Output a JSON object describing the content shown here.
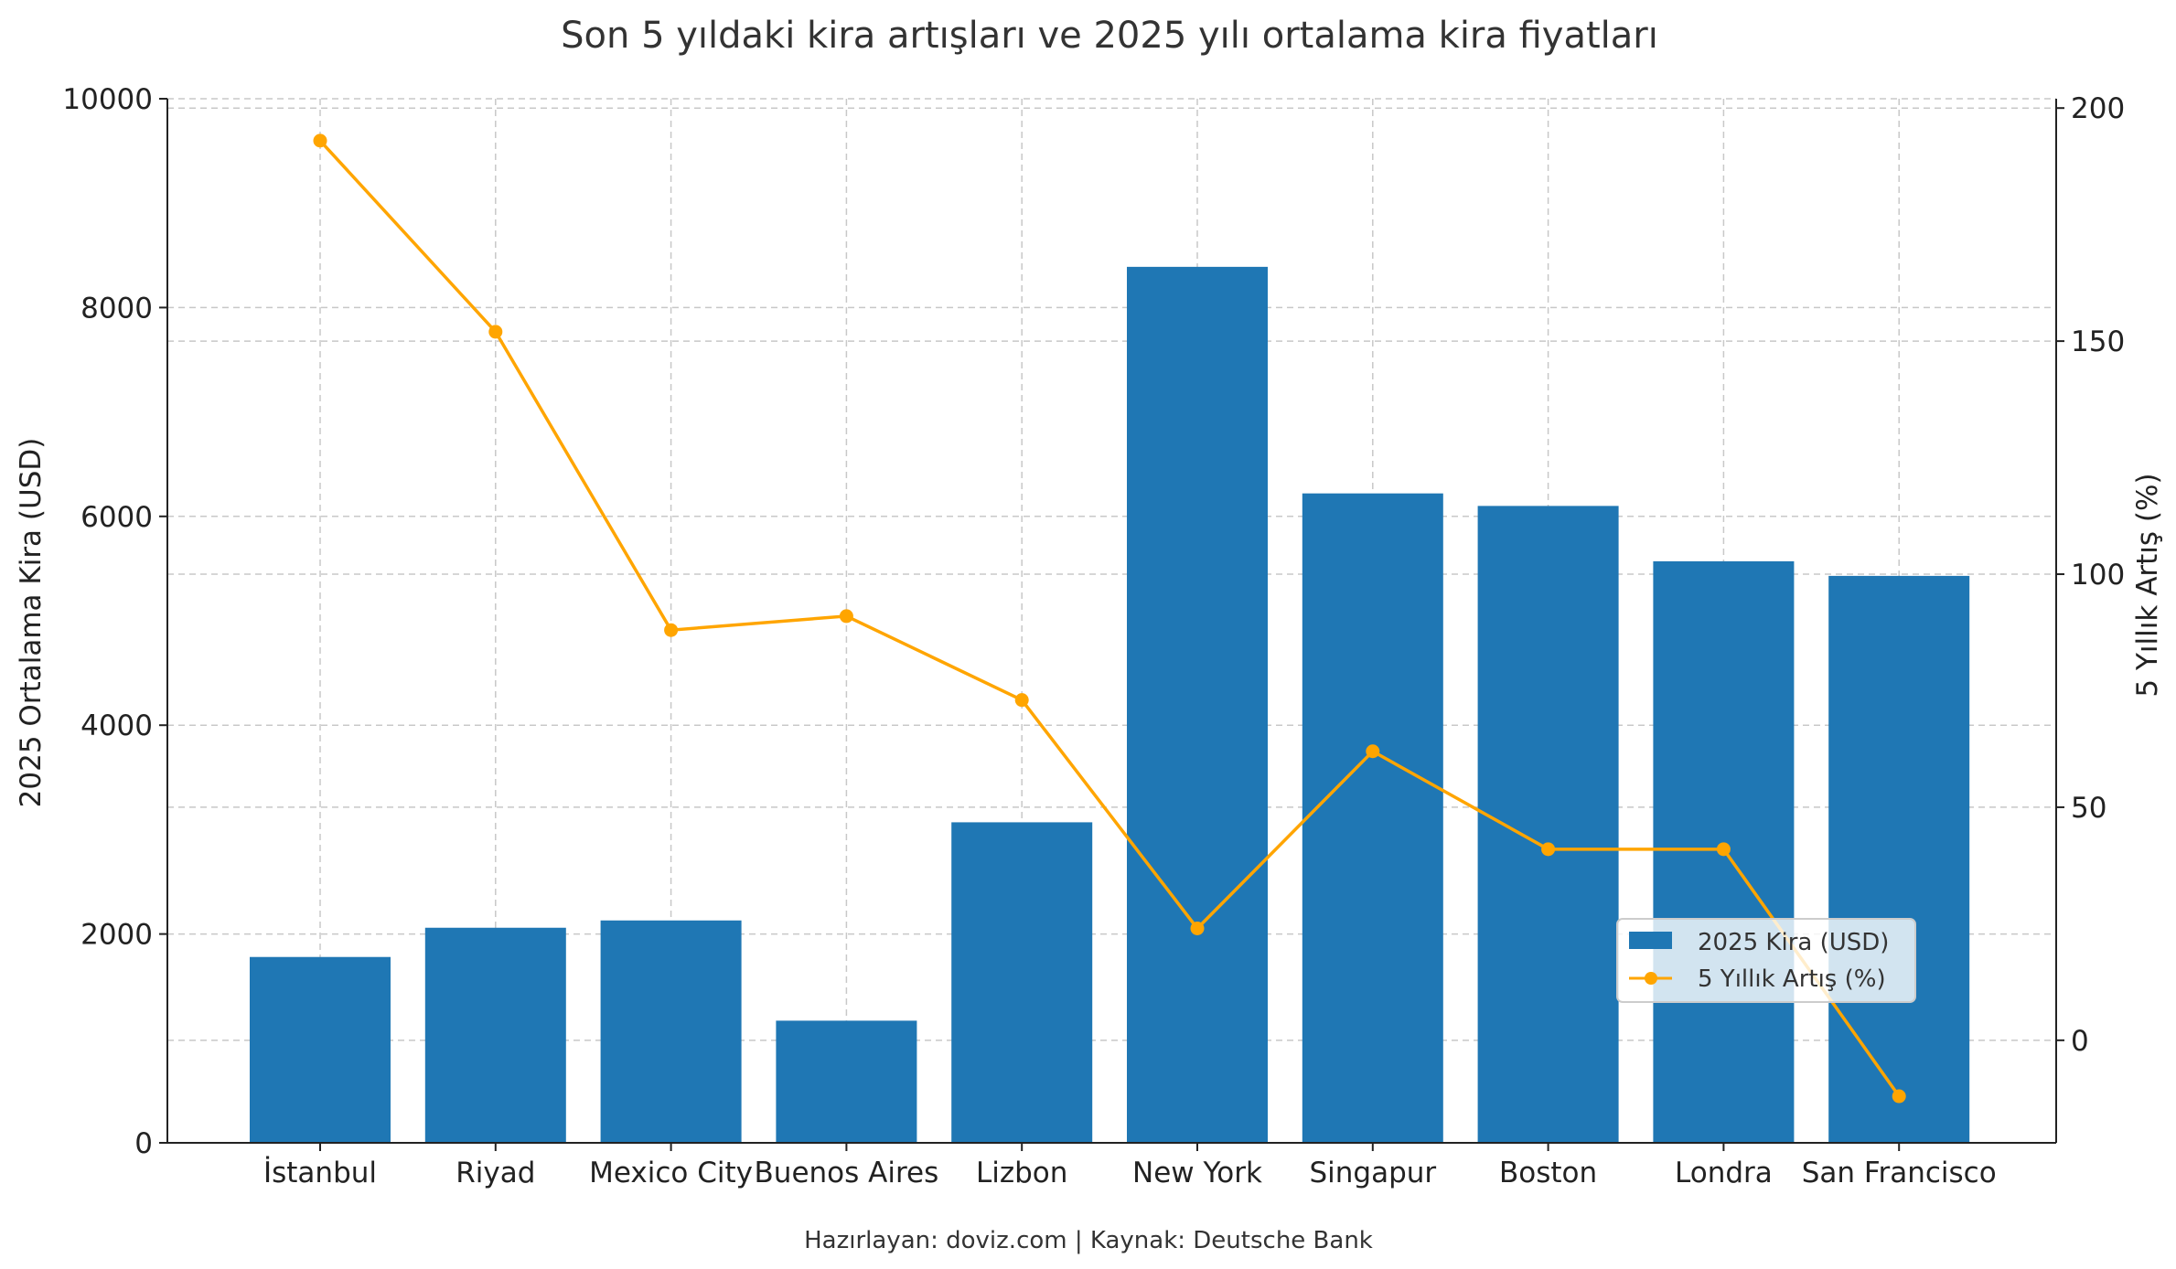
{
  "chart_data": {
    "type": "bar",
    "title": "Son 5 yıldaki kira artışları ve 2025 yılı ortalama kira fiyatları",
    "categories": [
      "İstanbul",
      "Riyad",
      "Mexico City",
      "Buenos Aires",
      "Lizbon",
      "New York",
      "Singapur",
      "Boston",
      "Londra",
      "San Francisco"
    ],
    "series": [
      {
        "name": "2025 Kira (USD)",
        "type": "bar",
        "axis": "left",
        "color": "#1f77b4",
        "values": [
          1780,
          2060,
          2130,
          1170,
          3070,
          8390,
          6220,
          6100,
          5570,
          5430
        ]
      },
      {
        "name": "5 Yıllık Artış (%)",
        "type": "line",
        "axis": "right",
        "color": "#ffa500",
        "values": [
          193,
          152,
          88,
          91,
          73,
          24,
          62,
          41,
          41,
          -12
        ]
      }
    ],
    "ylabel": "2025 Ortalama Kira (USD)",
    "y2label": "5 Yıllık Artış (%)",
    "ylim": [
      0,
      10000
    ],
    "y2lim": [
      -22,
      202
    ],
    "yticks": [
      0,
      2000,
      4000,
      6000,
      8000,
      10000
    ],
    "y2ticks": [
      0,
      50,
      100,
      150,
      200
    ],
    "grid": true,
    "legend_position": "lower-right",
    "footnote": "Hazırlayan: doviz.com | Kaynak: Deutsche Bank"
  }
}
